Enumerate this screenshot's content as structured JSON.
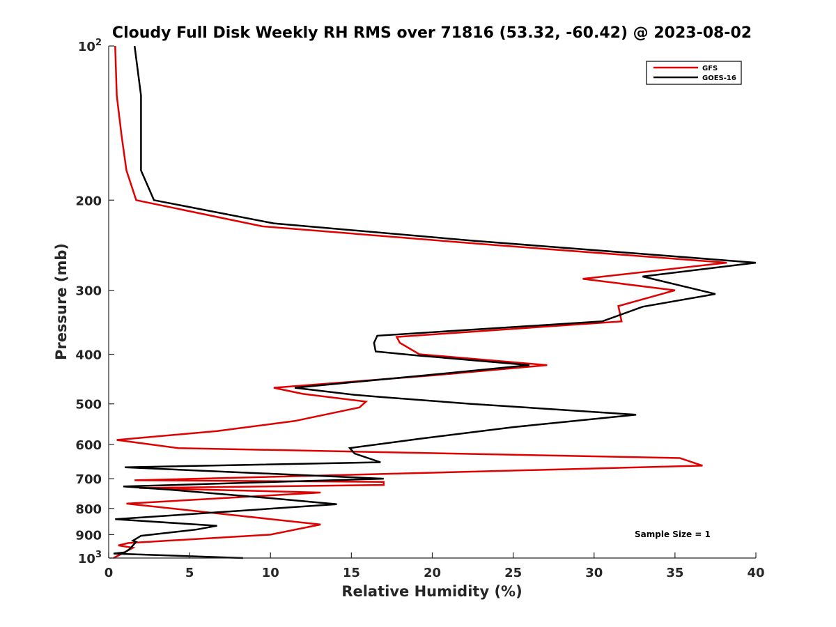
{
  "chart_data": {
    "type": "line",
    "title": "Cloudy Full Disk Weekly RH RMS over 71816 (53.32, -60.42) @ 2023-08-02",
    "xlabel": "Relative Humidity (%)",
    "ylabel": "Pressure (mb)",
    "xlim": [
      0,
      40
    ],
    "ylim": [
      100,
      1000
    ],
    "y_scale": "log",
    "y_reversed": true,
    "grid": false,
    "legend_position": "top-right",
    "annotation": "Sample Size = 1",
    "x_ticks": [
      "0",
      "5",
      "10",
      "15",
      "20",
      "25",
      "30",
      "35",
      "40"
    ],
    "y_ticks": [
      {
        "value": 100,
        "base": "10",
        "exp": "2"
      },
      {
        "value": 200,
        "label": "200"
      },
      {
        "value": 300,
        "label": "300"
      },
      {
        "value": 400,
        "label": "400"
      },
      {
        "value": 500,
        "label": "500"
      },
      {
        "value": 600,
        "label": "600"
      },
      {
        "value": 700,
        "label": "700"
      },
      {
        "value": 800,
        "label": "800"
      },
      {
        "value": 900,
        "label": "900"
      },
      {
        "value": 1000,
        "base": "10",
        "exp": "3"
      }
    ],
    "series": [
      {
        "name": "GFS",
        "color": "#e00000",
        "points": [
          [
            0.4,
            100
          ],
          [
            0.5,
            125
          ],
          [
            0.8,
            150
          ],
          [
            1.1,
            175
          ],
          [
            1.7,
            200
          ],
          [
            9.5,
            225
          ],
          [
            24.0,
            245
          ],
          [
            38.2,
            265
          ],
          [
            29.3,
            285
          ],
          [
            35.0,
            300
          ],
          [
            31.5,
            322
          ],
          [
            31.7,
            345
          ],
          [
            17.8,
            370
          ],
          [
            18.0,
            380
          ],
          [
            19.2,
            400
          ],
          [
            27.1,
            420
          ],
          [
            20.0,
            440
          ],
          [
            10.2,
            465
          ],
          [
            12.0,
            478
          ],
          [
            15.9,
            495
          ],
          [
            15.5,
            508
          ],
          [
            11.5,
            540
          ],
          [
            6.7,
            565
          ],
          [
            0.5,
            588
          ],
          [
            4.3,
            610
          ],
          [
            35.3,
            638
          ],
          [
            36.7,
            660
          ],
          [
            21.0,
            680
          ],
          [
            1.6,
            705
          ],
          [
            17.0,
            710
          ],
          [
            17.0,
            720
          ],
          [
            1.9,
            730
          ],
          [
            13.1,
            745
          ],
          [
            1.1,
            783
          ],
          [
            7.8,
            825
          ],
          [
            13.1,
            860
          ],
          [
            10.0,
            900
          ],
          [
            1.2,
            935
          ],
          [
            0.6,
            945
          ],
          [
            1.5,
            955
          ],
          [
            0.3,
            1000
          ]
        ]
      },
      {
        "name": "GOES-16",
        "color": "#000000",
        "points": [
          [
            1.6,
            100
          ],
          [
            2.0,
            125
          ],
          [
            2.0,
            175
          ],
          [
            2.8,
            200
          ],
          [
            10.2,
            222
          ],
          [
            22.5,
            240
          ],
          [
            40.0,
            265
          ],
          [
            33.0,
            282
          ],
          [
            37.5,
            305
          ],
          [
            33.0,
            323
          ],
          [
            30.5,
            345
          ],
          [
            16.6,
            368
          ],
          [
            16.4,
            380
          ],
          [
            16.5,
            395
          ],
          [
            19.0,
            402
          ],
          [
            26.0,
            420
          ],
          [
            19.5,
            440
          ],
          [
            11.5,
            465
          ],
          [
            15.2,
            480
          ],
          [
            16.9,
            485
          ],
          [
            22.4,
            500
          ],
          [
            32.6,
            525
          ],
          [
            25.0,
            555
          ],
          [
            19.2,
            585
          ],
          [
            14.9,
            610
          ],
          [
            15.2,
            625
          ],
          [
            16.8,
            650
          ],
          [
            1.0,
            665
          ],
          [
            17.0,
            700
          ],
          [
            0.9,
            725
          ],
          [
            3.7,
            735
          ],
          [
            10.2,
            765
          ],
          [
            14.1,
            785
          ],
          [
            0.4,
            840
          ],
          [
            6.7,
            865
          ],
          [
            5.4,
            880
          ],
          [
            2.0,
            905
          ],
          [
            1.5,
            925
          ],
          [
            1.7,
            930
          ],
          [
            1.3,
            960
          ],
          [
            1.0,
            975
          ],
          [
            0.3,
            980
          ],
          [
            8.3,
            1000
          ]
        ]
      }
    ]
  }
}
